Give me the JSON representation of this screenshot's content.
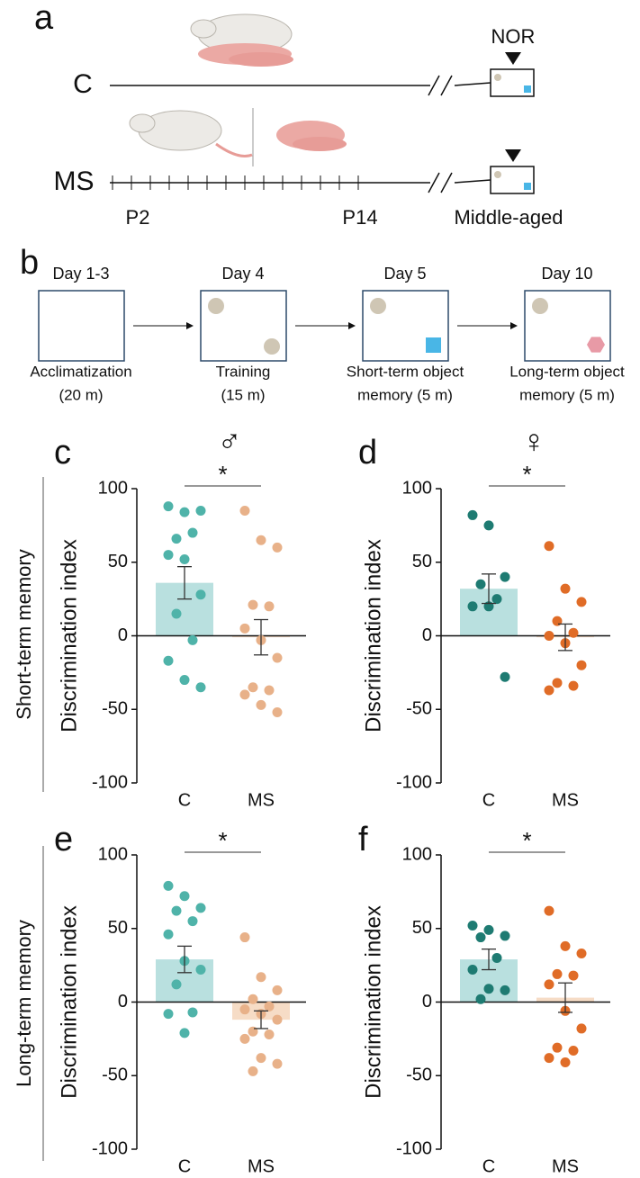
{
  "panel_a": {
    "label": "a",
    "rows": [
      "C",
      "MS"
    ],
    "test": "NOR",
    "timepoints": [
      "P2",
      "P14",
      "Middle-aged"
    ]
  },
  "panel_b": {
    "label": "b",
    "stages": [
      {
        "day": "Day 1-3",
        "caption": [
          "Acclimatization",
          "(20 m)"
        ]
      },
      {
        "day": "Day 4",
        "caption": [
          "Training",
          "(15 m)"
        ]
      },
      {
        "day": "Day 5",
        "caption": [
          "Short-term object",
          "memory (5 m)"
        ]
      },
      {
        "day": "Day 10",
        "caption": [
          "Long-term object",
          "memory (5 m)"
        ]
      }
    ]
  },
  "rows": [
    "Short-term memory",
    "Long-term memory"
  ],
  "chart_data": [
    {
      "type": "bar",
      "panel": "c",
      "title": "♂",
      "ylabel": "Discrimination index",
      "categories": [
        "C",
        "MS"
      ],
      "values": [
        36,
        -1
      ],
      "errors": [
        11,
        12
      ],
      "points": [
        [
          88,
          84,
          85,
          66,
          70,
          55,
          52,
          28,
          15,
          -3,
          -17,
          -30,
          -35
        ],
        [
          85,
          65,
          60,
          21,
          20,
          5,
          -3,
          -15,
          -35,
          -37,
          -40,
          -47,
          -52
        ]
      ],
      "bar_colors": [
        "#b9e0df",
        "#f6dcc6"
      ],
      "point_colors": [
        "#4fb3a9",
        "#e8b189"
      ],
      "significance": "*",
      "ylim": [
        -100,
        100
      ],
      "yticks": [
        -100,
        -50,
        0,
        50,
        100
      ]
    },
    {
      "type": "bar",
      "panel": "d",
      "title": "♀",
      "ylabel": "Discrimination index",
      "categories": [
        "C",
        "MS"
      ],
      "values": [
        32,
        -1
      ],
      "errors": [
        10,
        9
      ],
      "points": [
        [
          82,
          75,
          40,
          35,
          25,
          20,
          20,
          -28
        ],
        [
          61,
          32,
          23,
          10,
          2,
          0,
          -5,
          -20,
          -32,
          -34,
          -37
        ]
      ],
      "bar_colors": [
        "#b9e0df",
        "#f6dcc6"
      ],
      "point_colors": [
        "#1e7b72",
        "#e06c27"
      ],
      "significance": "*",
      "ylim": [
        -100,
        100
      ],
      "yticks": [
        -100,
        -50,
        0,
        50,
        100
      ]
    },
    {
      "type": "bar",
      "panel": "e",
      "ylabel": "Discrimination index",
      "categories": [
        "C",
        "MS"
      ],
      "values": [
        29,
        -12
      ],
      "errors": [
        9,
        6
      ],
      "points": [
        [
          79,
          72,
          64,
          62,
          55,
          46,
          28,
          22,
          12,
          -7,
          -8,
          -21
        ],
        [
          44,
          17,
          8,
          2,
          -3,
          -5,
          -8,
          -12,
          -20,
          -22,
          -25,
          -38,
          -42,
          -47
        ]
      ],
      "bar_colors": [
        "#b9e0df",
        "#f6dcc6"
      ],
      "point_colors": [
        "#4fb3a9",
        "#e8b189"
      ],
      "significance": "*",
      "ylim": [
        -100,
        100
      ],
      "yticks": [
        -100,
        -50,
        0,
        50,
        100
      ]
    },
    {
      "type": "bar",
      "panel": "f",
      "ylabel": "Discrimination index",
      "categories": [
        "C",
        "MS"
      ],
      "values": [
        29,
        3
      ],
      "errors": [
        7,
        10
      ],
      "points": [
        [
          52,
          49,
          45,
          44,
          30,
          22,
          9,
          8,
          2
        ],
        [
          62,
          38,
          33,
          19,
          18,
          12,
          -6,
          -18,
          -31,
          -33,
          -38,
          -41
        ]
      ],
      "bar_colors": [
        "#b9e0df",
        "#f6dcc6"
      ],
      "point_colors": [
        "#1e7b72",
        "#e06c27"
      ],
      "significance": "*",
      "ylim": [
        -100,
        100
      ],
      "yticks": [
        -100,
        -50,
        0,
        50,
        100
      ]
    }
  ]
}
